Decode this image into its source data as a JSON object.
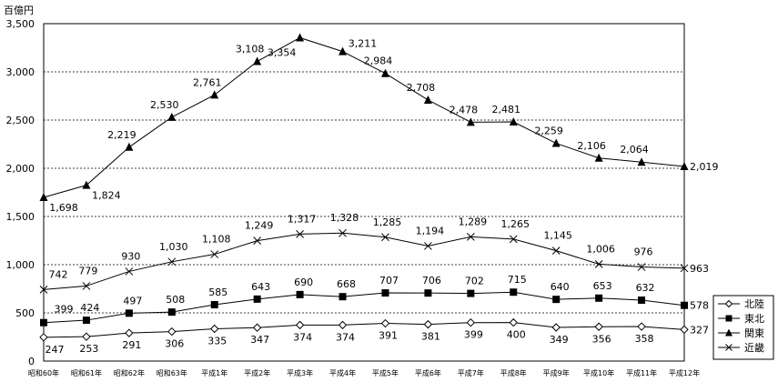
{
  "chart_data": {
    "type": "line",
    "unit_label": "百億円",
    "ylim": [
      0,
      3500
    ],
    "yticks": [
      "0",
      "500",
      "1,000",
      "1,500",
      "2,000",
      "2,500",
      "3,000",
      "3,500"
    ],
    "categories": [
      "昭和60年",
      "昭和61年",
      "昭和62年",
      "昭和63年",
      "平成1年",
      "平成2年",
      "平成3年",
      "平成4年",
      "平成5年",
      "平成6年",
      "平成7年",
      "平成8年",
      "平成9年",
      "平成10年",
      "平成11年",
      "平成12年"
    ],
    "grid": "horizontal dotted",
    "legend_position": "right",
    "series": [
      {
        "name": "北陸",
        "marker": "diamond-open",
        "color": "#000000",
        "values": [
          247,
          253,
          291,
          306,
          335,
          347,
          374,
          374,
          391,
          381,
          399,
          400,
          349,
          356,
          358,
          327
        ],
        "labels": [
          "247",
          "253",
          "291",
          "306",
          "335",
          "347",
          "374",
          "374",
          "391",
          "381",
          "399",
          "400",
          "349",
          "356",
          "358",
          "327"
        ]
      },
      {
        "name": "東北",
        "marker": "square-filled",
        "color": "#000000",
        "values": [
          399,
          424,
          497,
          508,
          585,
          643,
          690,
          668,
          707,
          706,
          702,
          715,
          640,
          653,
          632,
          578
        ],
        "labels": [
          "399",
          "424",
          "497",
          "508",
          "585",
          "643",
          "690",
          "668",
          "707",
          "706",
          "702",
          "715",
          "640",
          "653",
          "632",
          "578"
        ]
      },
      {
        "name": "関東",
        "marker": "triangle-filled",
        "color": "#000000",
        "values": [
          1698,
          1824,
          2219,
          2530,
          2761,
          3108,
          3354,
          3211,
          2984,
          2708,
          2478,
          2481,
          2259,
          2106,
          2064,
          2019
        ],
        "labels": [
          "1,698",
          "1,824",
          "2,219",
          "2,530",
          "2,761",
          "3,108",
          "3,354",
          "3,211",
          "2,984",
          "2,708",
          "2,478",
          "2,481",
          "2,259",
          "2,106",
          "2,064",
          "2,019"
        ]
      },
      {
        "name": "近畿",
        "marker": "x",
        "color": "#000000",
        "values": [
          742,
          779,
          930,
          1030,
          1108,
          1249,
          1317,
          1328,
          1285,
          1194,
          1289,
          1265,
          1145,
          1006,
          976,
          963
        ],
        "labels": [
          "742",
          "779",
          "930",
          "1,030",
          "1,108",
          "1,249",
          "1,317",
          "1,328",
          "1,285",
          "1,194",
          "1,289",
          "1,265",
          "1,145",
          "1,006",
          "976",
          "963"
        ]
      }
    ]
  }
}
